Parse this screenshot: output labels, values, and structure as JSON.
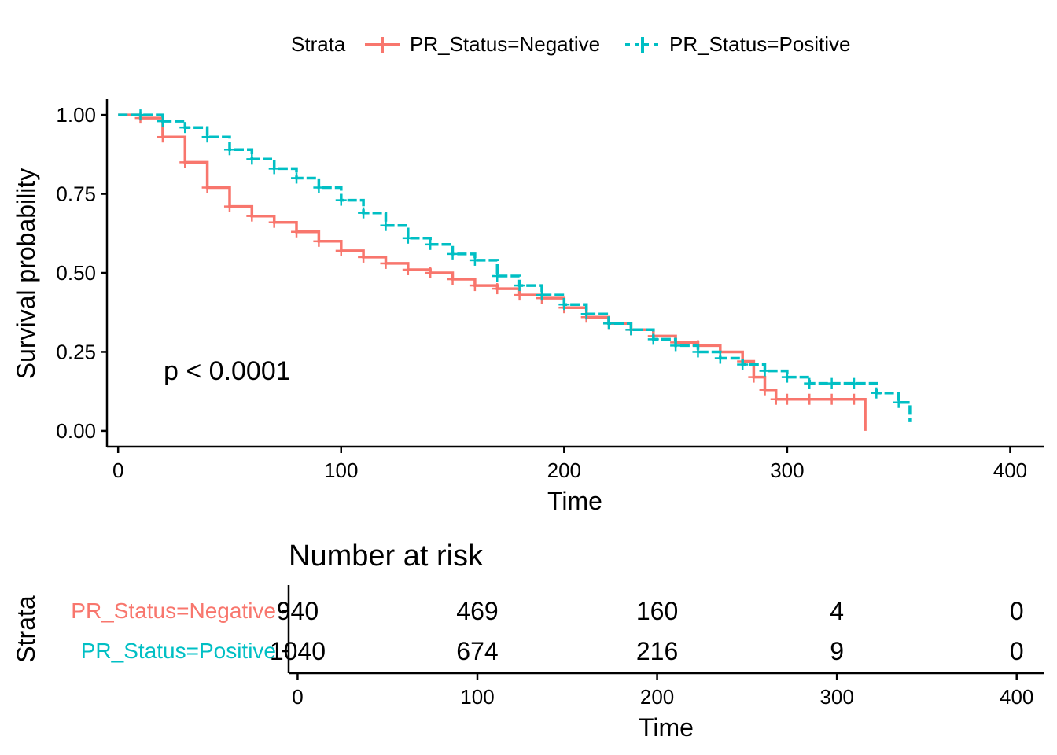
{
  "legend": {
    "title": "Strata",
    "placement": "top"
  },
  "chart_data": [
    {
      "type": "line",
      "xlabel": "Time",
      "ylabel": "Survival probability",
      "xlim": [
        -5,
        415
      ],
      "ylim": [
        -0.05,
        1.05
      ],
      "xticks": [
        0,
        100,
        200,
        300,
        400
      ],
      "yticks": [
        0,
        0.25,
        0.5,
        0.75,
        1
      ],
      "ytick_labels": [
        "0.00",
        "0.25",
        "0.50",
        "0.75",
        "1.00"
      ],
      "grid": false,
      "annotation": "p < 0.0001",
      "series": [
        {
          "name": "PR_Status=Negative",
          "color": "#F8766D",
          "x": [
            0,
            10,
            20,
            30,
            40,
            50,
            60,
            70,
            80,
            90,
            100,
            110,
            120,
            130,
            140,
            150,
            160,
            170,
            180,
            190,
            200,
            210,
            220,
            230,
            240,
            250,
            260,
            270,
            280,
            285,
            290,
            295,
            300,
            310,
            320,
            330,
            335
          ],
          "y": [
            1.0,
            0.99,
            0.93,
            0.85,
            0.77,
            0.71,
            0.68,
            0.66,
            0.63,
            0.6,
            0.57,
            0.55,
            0.53,
            0.51,
            0.5,
            0.48,
            0.46,
            0.45,
            0.43,
            0.42,
            0.39,
            0.36,
            0.34,
            0.32,
            0.3,
            0.28,
            0.27,
            0.25,
            0.22,
            0.17,
            0.13,
            0.1,
            0.1,
            0.1,
            0.1,
            0.1,
            0.0
          ]
        },
        {
          "name": "PR_Status=Positive",
          "color": "#00BFC4",
          "x": [
            0,
            10,
            20,
            30,
            40,
            50,
            60,
            70,
            80,
            90,
            100,
            110,
            120,
            130,
            140,
            150,
            160,
            170,
            180,
            190,
            200,
            210,
            220,
            230,
            240,
            250,
            260,
            270,
            280,
            290,
            300,
            310,
            320,
            330,
            340,
            350,
            355
          ],
          "y": [
            1.0,
            1.0,
            0.98,
            0.96,
            0.93,
            0.89,
            0.86,
            0.83,
            0.8,
            0.77,
            0.73,
            0.69,
            0.65,
            0.61,
            0.59,
            0.56,
            0.54,
            0.49,
            0.46,
            0.43,
            0.4,
            0.37,
            0.34,
            0.32,
            0.29,
            0.27,
            0.25,
            0.23,
            0.21,
            0.19,
            0.17,
            0.15,
            0.15,
            0.15,
            0.12,
            0.09,
            0.03
          ]
        }
      ]
    },
    {
      "type": "table",
      "title": "Number at risk",
      "xlabel": "Time",
      "ylabel": "Strata",
      "xlim": [
        -5,
        415
      ],
      "xticks": [
        0,
        100,
        200,
        300,
        400
      ],
      "rows": [
        {
          "name": "PR_Status=Negative",
          "color": "#F8766D",
          "values": [
            940,
            469,
            160,
            4,
            0
          ]
        },
        {
          "name": "PR_Status=Positive",
          "color": "#00BFC4",
          "values": [
            1040,
            674,
            216,
            9,
            0
          ]
        }
      ]
    }
  ]
}
